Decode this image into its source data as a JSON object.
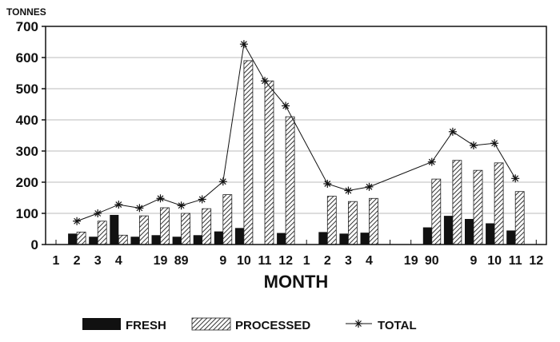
{
  "chart_data": {
    "type": "bar",
    "title": "",
    "ylabel": "TONNES",
    "xlabel": "MONTH",
    "ylim": [
      0,
      700
    ],
    "yticks": [
      0,
      100,
      200,
      300,
      400,
      500,
      600,
      700
    ],
    "grid": true,
    "legend_placement": "bottom",
    "tick_labels": [
      "1",
      "2",
      "3",
      "4",
      "",
      "19",
      "89",
      "",
      "9",
      "10",
      "11",
      "12",
      "1",
      "2",
      "3",
      "4",
      "",
      "19",
      "90",
      "",
      "9",
      "10",
      "11",
      "12"
    ],
    "categories": [
      "1989-1",
      "1989-2",
      "1989-3",
      "1989-4",
      "1989-5",
      "1989-6",
      "1989-7",
      "1989-8",
      "1989-9",
      "1989-10",
      "1989-11",
      "1989-12",
      "1990-1",
      "1990-2",
      "1990-3",
      "1990-4",
      "1990-5",
      "1990-6",
      "1990-7",
      "1990-8",
      "1990-9",
      "1990-10",
      "1990-11",
      "1990-12"
    ],
    "series": [
      {
        "name": "FRESH",
        "kind": "bar",
        "color": "#111111",
        "values": [
          0,
          35,
          25,
          95,
          25,
          30,
          25,
          30,
          42,
          53,
          0,
          37,
          null,
          40,
          35,
          38,
          null,
          null,
          55,
          92,
          82,
          68,
          45,
          null
        ]
      },
      {
        "name": "PROCESSED",
        "kind": "bar-hatched",
        "color": "#555555",
        "values": [
          0,
          40,
          75,
          30,
          92,
          118,
          100,
          115,
          160,
          590,
          525,
          410,
          null,
          155,
          138,
          148,
          null,
          null,
          210,
          270,
          238,
          262,
          170,
          null
        ]
      },
      {
        "name": "TOTAL",
        "kind": "line-star",
        "color": "#111111",
        "values": [
          null,
          75,
          100,
          128,
          117,
          148,
          125,
          145,
          202,
          643,
          525,
          445,
          null,
          195,
          173,
          185,
          null,
          null,
          265,
          362,
          318,
          325,
          212,
          null
        ]
      }
    ]
  }
}
